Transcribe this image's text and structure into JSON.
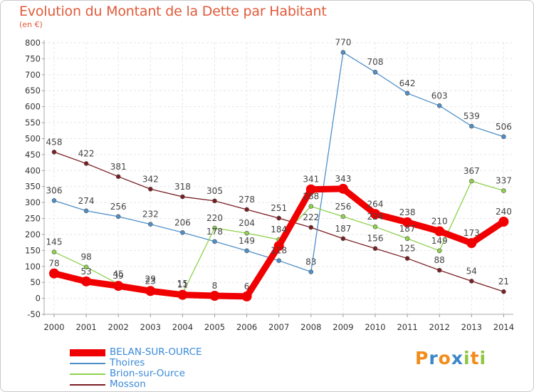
{
  "chart_data": {
    "type": "line",
    "title": "Evolution du Montant de la Dette par Habitant",
    "subtitle": "(en €)",
    "x": [
      "2000",
      "2001",
      "2002",
      "2003",
      "2004",
      "2005",
      "2006",
      "2007",
      "2008",
      "2009",
      "2010",
      "2011",
      "2012",
      "2013",
      "2014"
    ],
    "ylim": [
      -50,
      800
    ],
    "yticks": [
      -50,
      0,
      50,
      100,
      150,
      200,
      250,
      300,
      350,
      400,
      450,
      500,
      550,
      600,
      650,
      700,
      750,
      800
    ],
    "ytick_labels": [
      "-50",
      "0",
      "50",
      "100",
      "150",
      "200",
      "250",
      "300",
      "350",
      "400",
      "450",
      "500",
      "550",
      "600",
      "650",
      "700",
      "750",
      "800"
    ],
    "grid": true,
    "legend_position": "bottom-left",
    "series": [
      {
        "name": "Mosson",
        "color": "#7a1e22",
        "values": [
          458,
          422,
          381,
          342,
          318,
          305,
          278,
          251,
          222,
          187,
          156,
          125,
          88,
          54,
          21
        ],
        "labels": [
          "458",
          "422",
          "381",
          "342",
          "318",
          "305",
          "278",
          "251",
          "222",
          "187",
          "156",
          "125",
          "88",
          "54",
          "21"
        ]
      },
      {
        "name": "Thoires",
        "color": "#4f8fc8",
        "values": [
          306,
          274,
          256,
          232,
          206,
          178,
          149,
          118,
          83,
          770,
          708,
          642,
          603,
          539,
          506
        ],
        "labels": [
          "306",
          "274",
          "256",
          "232",
          "206",
          "178",
          "149",
          "118",
          "83",
          "770",
          "708",
          "642",
          "603",
          "539",
          "506"
        ]
      },
      {
        "name": "Brion-sur-Ource",
        "color": "#8ed14c",
        "values": [
          145,
          98,
          45,
          29,
          15,
          220,
          204,
          184,
          288,
          256,
          224,
          187,
          149,
          367,
          337
        ],
        "labels": [
          "145",
          "98",
          "45",
          "29",
          "15",
          "220",
          "204",
          "184",
          "288",
          "256",
          "224",
          "187",
          "149",
          "367",
          "337"
        ]
      },
      {
        "name": "BELAN-SUR-OURCE",
        "color": "#f00000",
        "values": [
          78,
          53,
          39,
          23,
          11,
          8,
          6,
          164,
          341,
          343,
          264,
          238,
          210,
          173,
          240
        ],
        "labels": [
          "78",
          "53",
          "39",
          "23",
          "11",
          "8",
          "6",
          "",
          "341",
          "343",
          "264",
          "238",
          "210",
          "173",
          "240"
        ]
      }
    ]
  },
  "legend": {
    "items": [
      {
        "label": "BELAN-SUR-OURCE",
        "color": "#f00000"
      },
      {
        "label": "Thoires",
        "color": "#4f8fc8"
      },
      {
        "label": "Brion-sur-Ource",
        "color": "#8ed14c"
      },
      {
        "label": "Mosson",
        "color": "#7a1e22"
      }
    ]
  },
  "logo": {
    "letters": [
      "P",
      "r",
      "o",
      "x",
      "i",
      "t",
      "i"
    ],
    "colors": [
      "#f28c1a",
      "#3b87c8",
      "#f28c1a",
      "#3b87c8",
      "#8ec63f",
      "#f28c1a",
      "#8ec63f"
    ]
  }
}
